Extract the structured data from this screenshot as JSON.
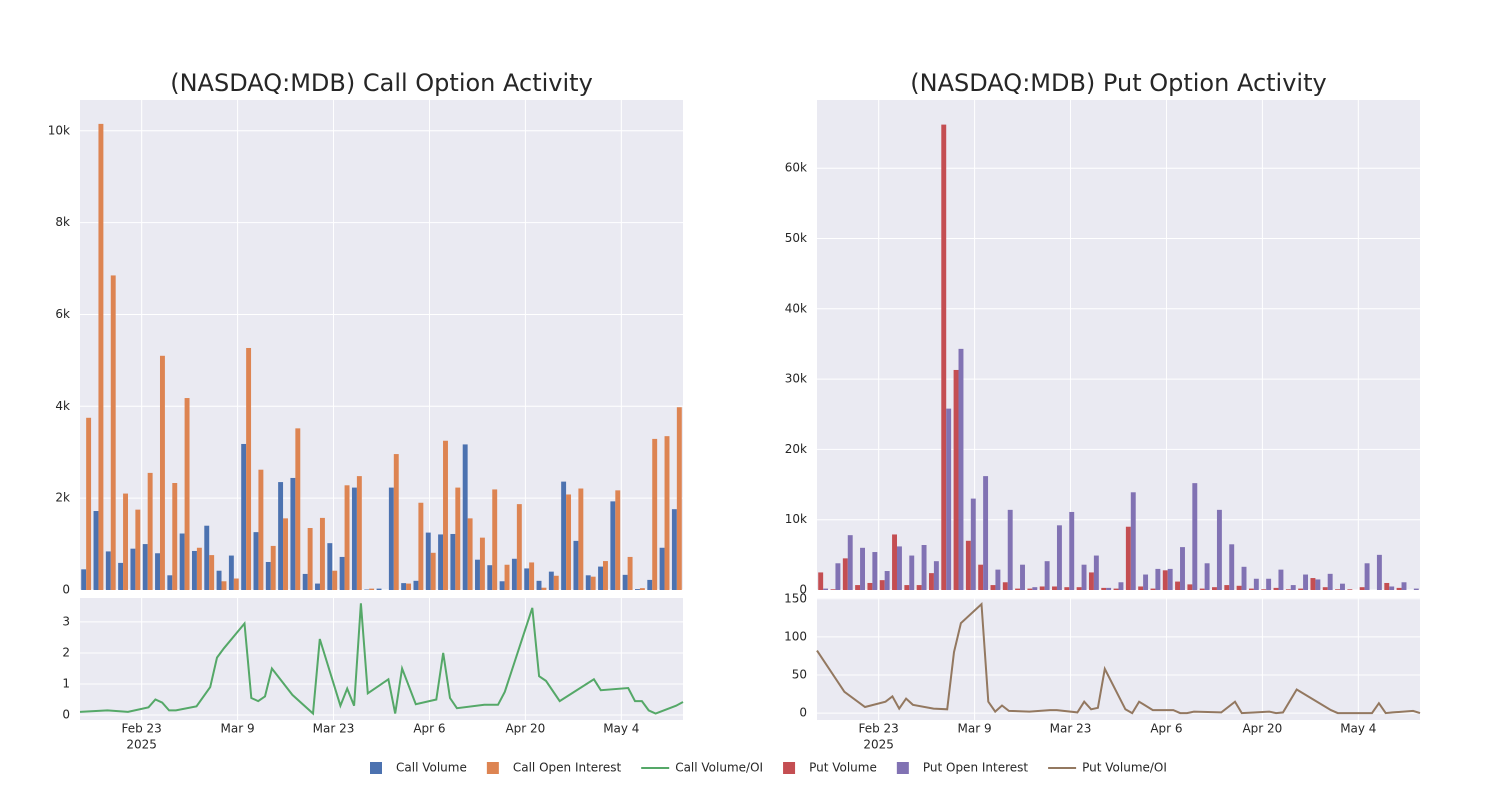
{
  "chart_data": [
    {
      "type": "bar",
      "title": "(NASDAQ:MDB) Call Option Activity",
      "x": [
        "2025-02-14",
        "2025-02-18",
        "2025-02-21",
        "2025-02-24",
        "2025-02-25",
        "2025-02-26",
        "2025-02-27",
        "2025-02-28",
        "2025-03-03",
        "2025-03-05",
        "2025-03-06",
        "2025-03-07",
        "2025-03-10",
        "2025-03-11",
        "2025-03-12",
        "2025-03-13",
        "2025-03-14",
        "2025-03-17",
        "2025-03-20",
        "2025-03-21",
        "2025-03-24",
        "2025-03-25",
        "2025-03-26",
        "2025-03-27",
        "2025-03-28",
        "2025-03-31",
        "2025-04-01",
        "2025-04-02",
        "2025-04-04",
        "2025-04-07",
        "2025-04-08",
        "2025-04-09",
        "2025-04-10",
        "2025-04-14",
        "2025-04-16",
        "2025-04-17",
        "2025-04-21",
        "2025-04-22",
        "2025-04-23",
        "2025-04-25",
        "2025-04-30",
        "2025-05-01",
        "2025-05-05",
        "2025-05-06",
        "2025-05-07",
        "2025-05-08",
        "2025-05-09",
        "2025-05-12",
        "2025-05-13"
      ],
      "series": [
        {
          "name": "Call Volume",
          "color": "#4c72b0",
          "values": [
            450,
            1720,
            840,
            590,
            900,
            1000,
            800,
            320,
            1230,
            850,
            1400,
            420,
            750,
            3180,
            1260,
            610,
            2350,
            2440,
            350,
            140,
            1020,
            720,
            2230,
            10,
            30,
            2230,
            150,
            200,
            1250,
            1210,
            1220,
            3170,
            660,
            540,
            190,
            680,
            470,
            200,
            400,
            2360,
            1070,
            320,
            510,
            1930,
            330,
            20,
            220,
            920,
            1760
          ]
        },
        {
          "name": "Call Open Interest",
          "color": "#dd8452",
          "values": [
            3750,
            10150,
            6850,
            2100,
            1750,
            2550,
            5100,
            2330,
            4180,
            920,
            760,
            190,
            250,
            5270,
            2620,
            960,
            1560,
            3520,
            1350,
            1570,
            420,
            2280,
            2480,
            30,
            0,
            2960,
            140,
            1900,
            810,
            3250,
            2230,
            1560,
            1140,
            2190,
            550,
            1870,
            600,
            50,
            310,
            2080,
            2210,
            290,
            630,
            2170,
            720,
            40,
            3290,
            3350,
            3980
          ]
        },
        {
          "name": "Call Volume/OI",
          "color": "#55a868",
          "axis": "y2",
          "values": [
            0.1,
            0.15,
            0.1,
            0.25,
            0.5,
            0.4,
            0.15,
            0.15,
            0.28,
            0.9,
            1.85,
            2.15,
            2.95,
            0.55,
            0.45,
            0.6,
            1.5,
            0.65,
            0.05,
            2.45,
            0.3,
            0.85,
            0.3,
            3.6,
            0.7,
            1.15,
            0.05,
            1.5,
            0.35,
            0.5,
            2.0,
            0.55,
            0.22,
            0.33,
            0.33,
            0.75,
            3.45,
            1.25,
            1.1,
            0.45,
            1.15,
            0.8,
            0.87,
            0.45,
            0.45,
            0.15,
            0.05,
            0.3,
            0.42
          ]
        }
      ],
      "xlim": [
        "2025-02-14",
        "2025-05-13"
      ],
      "xticks": [
        {
          "value": "2025-02-23",
          "label": "Feb 23"
        },
        {
          "value": "2025-03-09",
          "label": "Mar 9"
        },
        {
          "value": "2025-03-23",
          "label": "Mar 23"
        },
        {
          "value": "2025-04-06",
          "label": "Apr 6"
        },
        {
          "value": "2025-04-20",
          "label": "Apr 20"
        },
        {
          "value": "2025-05-04",
          "label": "May 4"
        }
      ],
      "x_year": "2025",
      "ylim": [
        0,
        10670
      ],
      "yticks": [
        0,
        {
          "value": 2000,
          "label": "2k"
        },
        {
          "value": 4000,
          "label": "4k"
        },
        {
          "value": 6000,
          "label": "6k"
        },
        {
          "value": 8000,
          "label": "8k"
        },
        {
          "value": 10000,
          "label": "10k"
        }
      ],
      "y2lim": [
        -0.16,
        3.77
      ],
      "y2ticks": [
        0,
        1,
        2,
        3
      ],
      "grid": true
    },
    {
      "type": "bar",
      "title": "(NASDAQ:MDB) Put Option Activity",
      "x": [
        "2025-02-14",
        "2025-02-18",
        "2025-02-21",
        "2025-02-24",
        "2025-02-25",
        "2025-02-26",
        "2025-02-27",
        "2025-02-28",
        "2025-03-03",
        "2025-03-05",
        "2025-03-06",
        "2025-03-07",
        "2025-03-10",
        "2025-03-11",
        "2025-03-12",
        "2025-03-13",
        "2025-03-14",
        "2025-03-17",
        "2025-03-20",
        "2025-03-21",
        "2025-03-24",
        "2025-03-25",
        "2025-03-26",
        "2025-03-27",
        "2025-03-28",
        "2025-03-31",
        "2025-04-01",
        "2025-04-02",
        "2025-04-04",
        "2025-04-07",
        "2025-04-08",
        "2025-04-09",
        "2025-04-10",
        "2025-04-14",
        "2025-04-16",
        "2025-04-17",
        "2025-04-21",
        "2025-04-22",
        "2025-04-23",
        "2025-04-25",
        "2025-04-30",
        "2025-05-01",
        "2025-05-05",
        "2025-05-06",
        "2025-05-07",
        "2025-05-08",
        "2025-05-09",
        "2025-05-12",
        "2025-05-13"
      ],
      "series": [
        {
          "name": "Put Volume",
          "color": "#c44e52",
          "values": [
            2500,
            100,
            4500,
            700,
            1000,
            1400,
            7900,
            700,
            700,
            2400,
            66200,
            31300,
            7000,
            3600,
            700,
            1100,
            200,
            200,
            500,
            500,
            400,
            400,
            2500,
            300,
            200,
            9000,
            500,
            200,
            2800,
            1200,
            800,
            200,
            400,
            700,
            600,
            200,
            100,
            300,
            100,
            200,
            1700,
            400,
            100,
            100,
            400,
            0,
            1000,
            300,
            0
          ]
        },
        {
          "name": "Put Open Interest",
          "color": "#8172b3",
          "values": [
            200,
            3800,
            7800,
            6000,
            5400,
            2700,
            6200,
            4900,
            6400,
            4100,
            25800,
            34300,
            13000,
            16200,
            2900,
            11400,
            3600,
            400,
            4100,
            9200,
            11100,
            3600,
            4900,
            300,
            1100,
            13900,
            2200,
            3000,
            3000,
            6100,
            15200,
            3800,
            11400,
            6500,
            3300,
            1600,
            1600,
            2900,
            700,
            2200,
            1500,
            2300,
            900,
            0,
            3800,
            5000,
            500,
            1100,
            200
          ]
        },
        {
          "name": "Put Volume/OI",
          "color": "#937860",
          "axis": "y2",
          "values": [
            82,
            28,
            8,
            15,
            22,
            6,
            19,
            11,
            6,
            5,
            80,
            118,
            143,
            15,
            2,
            10,
            3,
            2,
            4,
            4,
            1,
            15,
            5,
            7,
            58,
            5,
            0,
            15,
            4,
            4,
            0,
            0,
            2,
            1,
            15,
            0,
            2,
            0,
            1,
            31,
            4,
            0,
            0,
            0,
            13,
            0,
            1,
            3,
            0
          ]
        }
      ],
      "xlim": [
        "2025-02-14",
        "2025-05-13"
      ],
      "xticks": [
        {
          "value": "2025-02-23",
          "label": "Feb 23"
        },
        {
          "value": "2025-03-09",
          "label": "Mar 9"
        },
        {
          "value": "2025-03-23",
          "label": "Mar 23"
        },
        {
          "value": "2025-04-06",
          "label": "Apr 6"
        },
        {
          "value": "2025-04-20",
          "label": "Apr 20"
        },
        {
          "value": "2025-05-04",
          "label": "May 4"
        }
      ],
      "x_year": "2025",
      "ylim": [
        0,
        69700
      ],
      "yticks": [
        0,
        {
          "value": 10000,
          "label": "10k"
        },
        {
          "value": 20000,
          "label": "20k"
        },
        {
          "value": 30000,
          "label": "30k"
        },
        {
          "value": 40000,
          "label": "40k"
        },
        {
          "value": 50000,
          "label": "50k"
        },
        {
          "value": 60000,
          "label": "60k"
        }
      ],
      "y2lim": [
        -9,
        151
      ],
      "y2ticks": [
        0,
        50,
        100,
        150
      ],
      "grid": true
    }
  ]
}
